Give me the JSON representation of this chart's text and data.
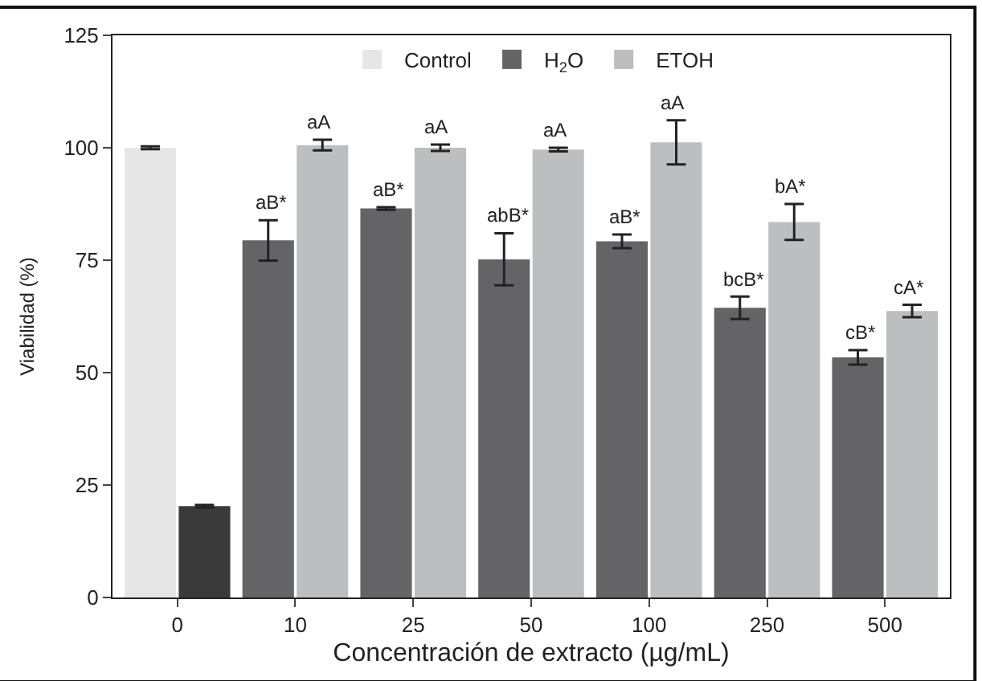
{
  "chart_data": {
    "type": "bar",
    "xlabel": "Concentración de extracto (µg/mL)",
    "ylabel": "Viabilidad (%)",
    "categories": [
      "0",
      "10",
      "25",
      "50",
      "100",
      "250",
      "500"
    ],
    "series": [
      {
        "name": "Control",
        "color": "#e6e6e6",
        "values": [
          100,
          null,
          null,
          null,
          null,
          null,
          null
        ],
        "errors": [
          0.3,
          null,
          null,
          null,
          null,
          null,
          null
        ]
      },
      {
        "color": "#3a3a3a",
        "values": [
          20.3,
          null,
          null,
          null,
          null,
          null,
          null
        ],
        "errors": [
          0.3,
          null,
          null,
          null,
          null,
          null,
          null
        ]
      },
      {
        "name": "H$_{2}$O",
        "color": "#646466",
        "values": [
          null,
          79.4,
          86.5,
          75.2,
          79.2,
          64.4,
          53.4
        ],
        "errors": [
          null,
          4.5,
          0.3,
          5.8,
          1.5,
          2.5,
          1.6
        ],
        "value_labels": [
          null,
          "aB*",
          "aB*",
          "abB*",
          "aB*",
          "bcB*",
          "cB*"
        ]
      },
      {
        "name": "ETOH",
        "color": "#bdbec0",
        "values": [
          null,
          100.6,
          100,
          99.6,
          101.2,
          83.5,
          63.7
        ],
        "errors": [
          null,
          1.2,
          0.7,
          0.4,
          4.9,
          4,
          1.4
        ],
        "value_labels": [
          null,
          "aA",
          "aA",
          "aA",
          "aA",
          "bA*",
          "cA*"
        ]
      }
    ],
    "ylim": [
      0,
      125
    ],
    "yticks": [
      0,
      25,
      50,
      75,
      100,
      125
    ],
    "legend": "top"
  }
}
